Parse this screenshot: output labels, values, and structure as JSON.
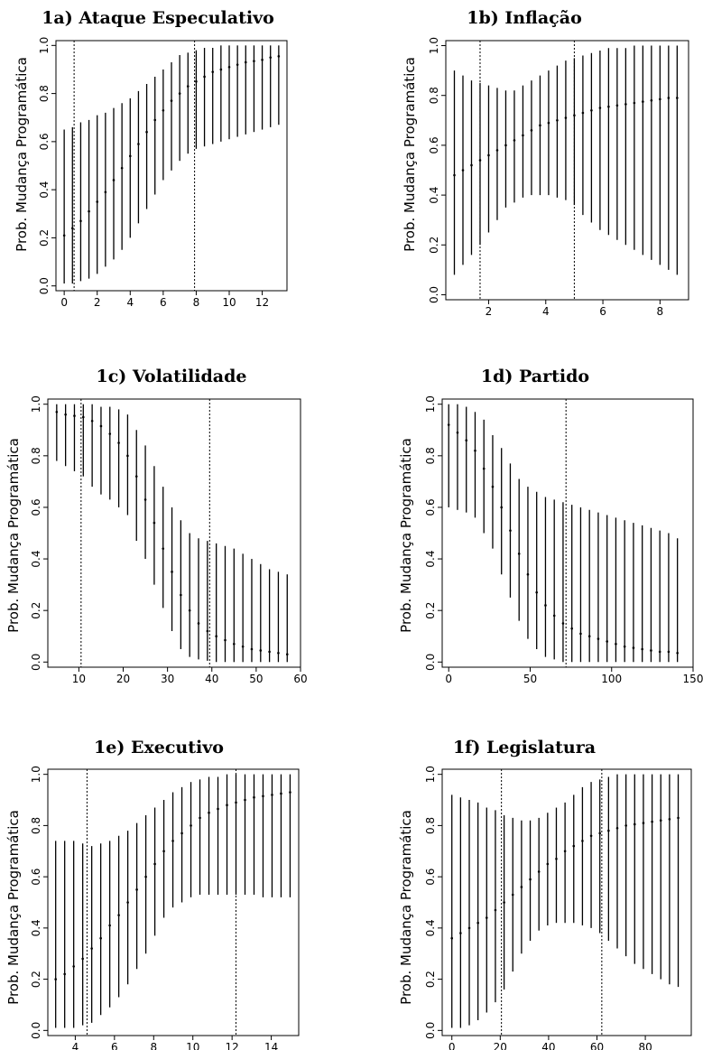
{
  "chart_data": [
    {
      "id": "1a",
      "type": "errorbar",
      "title": "1a) Ataque Especulativo",
      "ylabel": "Prob. Mudança Programática",
      "xlim": [
        -0.5,
        13.5
      ],
      "ylim": [
        -0.02,
        1.02
      ],
      "xticks": [
        0,
        2,
        4,
        6,
        8,
        10,
        12
      ],
      "yticks": [
        0.0,
        0.2,
        0.4,
        0.6,
        0.8,
        1.0
      ],
      "vlines": [
        0.6,
        7.9
      ],
      "x": [
        0,
        0.5,
        1,
        1.5,
        2,
        2.5,
        3,
        3.5,
        4,
        4.5,
        5,
        5.5,
        6,
        6.5,
        7,
        7.5,
        8,
        8.5,
        9,
        9.5,
        10,
        10.5,
        11,
        11.5,
        12,
        12.5,
        13
      ],
      "y": [
        0.21,
        0.24,
        0.27,
        0.31,
        0.35,
        0.39,
        0.44,
        0.49,
        0.54,
        0.59,
        0.64,
        0.69,
        0.73,
        0.77,
        0.8,
        0.83,
        0.85,
        0.87,
        0.89,
        0.9,
        0.91,
        0.92,
        0.93,
        0.935,
        0.94,
        0.95,
        0.955
      ],
      "lower": [
        0.01,
        0.01,
        0.02,
        0.03,
        0.05,
        0.08,
        0.11,
        0.15,
        0.2,
        0.26,
        0.32,
        0.38,
        0.44,
        0.48,
        0.52,
        0.55,
        0.57,
        0.58,
        0.59,
        0.6,
        0.61,
        0.62,
        0.63,
        0.64,
        0.65,
        0.66,
        0.67
      ],
      "upper": [
        0.65,
        0.66,
        0.68,
        0.69,
        0.71,
        0.72,
        0.74,
        0.76,
        0.78,
        0.81,
        0.84,
        0.87,
        0.9,
        0.93,
        0.96,
        0.97,
        0.98,
        0.99,
        0.99,
        1.0,
        1.0,
        1.0,
        1.0,
        1.0,
        1.0,
        1.0,
        1.0
      ]
    },
    {
      "id": "1b",
      "type": "errorbar",
      "title": "1b) Inflação",
      "ylabel": "Prob. Mudança Programática",
      "xlim": [
        0.5,
        9.0
      ],
      "ylim": [
        -0.02,
        1.02
      ],
      "xticks": [
        2,
        4,
        6,
        8
      ],
      "yticks": [
        0.0,
        0.2,
        0.4,
        0.6,
        0.8,
        1.0
      ],
      "vlines": [
        1.7,
        5.0
      ],
      "x": [
        0.8,
        1.1,
        1.4,
        1.7,
        2.0,
        2.3,
        2.6,
        2.9,
        3.2,
        3.5,
        3.8,
        4.1,
        4.4,
        4.7,
        5.0,
        5.3,
        5.6,
        5.9,
        6.2,
        6.5,
        6.8,
        7.1,
        7.4,
        7.7,
        8.0,
        8.3,
        8.6
      ],
      "y": [
        0.48,
        0.5,
        0.52,
        0.54,
        0.56,
        0.58,
        0.6,
        0.62,
        0.64,
        0.66,
        0.68,
        0.69,
        0.7,
        0.71,
        0.72,
        0.73,
        0.74,
        0.75,
        0.755,
        0.76,
        0.765,
        0.77,
        0.775,
        0.78,
        0.785,
        0.79,
        0.79
      ],
      "lower": [
        0.08,
        0.12,
        0.16,
        0.2,
        0.25,
        0.3,
        0.35,
        0.37,
        0.39,
        0.4,
        0.4,
        0.4,
        0.39,
        0.38,
        0.36,
        0.32,
        0.29,
        0.26,
        0.24,
        0.22,
        0.2,
        0.18,
        0.16,
        0.14,
        0.12,
        0.1,
        0.08
      ],
      "upper": [
        0.9,
        0.88,
        0.86,
        0.85,
        0.84,
        0.83,
        0.82,
        0.82,
        0.84,
        0.86,
        0.88,
        0.9,
        0.92,
        0.94,
        0.95,
        0.96,
        0.97,
        0.98,
        0.99,
        0.99,
        0.99,
        1.0,
        1.0,
        1.0,
        1.0,
        1.0,
        1.0
      ]
    },
    {
      "id": "1c",
      "type": "errorbar",
      "title": "1c) Volatilidade",
      "ylabel": "Prob. Mudança Programática",
      "xlim": [
        3,
        60
      ],
      "ylim": [
        -0.02,
        1.02
      ],
      "xticks": [
        10,
        20,
        30,
        40,
        50,
        60
      ],
      "yticks": [
        0.0,
        0.2,
        0.4,
        0.6,
        0.8,
        1.0
      ],
      "vlines": [
        10.5,
        39.5
      ],
      "x": [
        5,
        7,
        9,
        11,
        13,
        15,
        17,
        19,
        21,
        23,
        25,
        27,
        29,
        31,
        33,
        35,
        37,
        39,
        41,
        43,
        45,
        47,
        49,
        51,
        53,
        55,
        57
      ],
      "y": [
        0.97,
        0.96,
        0.955,
        0.95,
        0.935,
        0.915,
        0.885,
        0.85,
        0.8,
        0.72,
        0.63,
        0.54,
        0.44,
        0.35,
        0.26,
        0.2,
        0.15,
        0.12,
        0.1,
        0.085,
        0.07,
        0.06,
        0.05,
        0.045,
        0.04,
        0.035,
        0.03
      ],
      "lower": [
        0.78,
        0.76,
        0.74,
        0.72,
        0.68,
        0.65,
        0.63,
        0.6,
        0.57,
        0.47,
        0.4,
        0.3,
        0.21,
        0.12,
        0.05,
        0.02,
        0.01,
        0.005,
        0.0,
        0.0,
        0.0,
        0.0,
        0.0,
        0.0,
        0.0,
        0.0,
        0.0
      ],
      "upper": [
        1.0,
        1.0,
        1.0,
        1.0,
        1.0,
        0.99,
        0.99,
        0.98,
        0.96,
        0.9,
        0.84,
        0.76,
        0.68,
        0.6,
        0.55,
        0.5,
        0.48,
        0.47,
        0.46,
        0.45,
        0.44,
        0.42,
        0.4,
        0.38,
        0.36,
        0.35,
        0.34
      ]
    },
    {
      "id": "1d",
      "type": "errorbar",
      "title": "1d) Partido",
      "ylabel": "Prob. Mudança Programática",
      "xlim": [
        -4,
        150
      ],
      "ylim": [
        -0.02,
        1.02
      ],
      "xticks": [
        0,
        50,
        100,
        150
      ],
      "yticks": [
        0.0,
        0.2,
        0.4,
        0.6,
        0.8,
        1.0
      ],
      "vlines": [
        72
      ],
      "x": [
        0,
        5.4,
        10.8,
        16.2,
        21.6,
        27,
        32.4,
        37.8,
        43.2,
        48.6,
        54,
        59.4,
        64.8,
        70.2,
        75.6,
        81,
        86.4,
        91.8,
        97.2,
        102.6,
        108,
        113.4,
        118.8,
        124.2,
        129.6,
        135,
        140.4
      ],
      "y": [
        0.92,
        0.89,
        0.86,
        0.82,
        0.75,
        0.68,
        0.6,
        0.51,
        0.42,
        0.34,
        0.27,
        0.22,
        0.18,
        0.15,
        0.13,
        0.11,
        0.1,
        0.09,
        0.08,
        0.07,
        0.06,
        0.055,
        0.05,
        0.045,
        0.04,
        0.04,
        0.035
      ],
      "lower": [
        0.6,
        0.59,
        0.58,
        0.56,
        0.5,
        0.44,
        0.34,
        0.25,
        0.16,
        0.09,
        0.05,
        0.02,
        0.01,
        0.0,
        0.0,
        0.0,
        0.0,
        0.0,
        0.0,
        0.0,
        0.0,
        0.0,
        0.0,
        0.0,
        0.0,
        0.0,
        0.0
      ],
      "upper": [
        1.0,
        1.0,
        0.99,
        0.97,
        0.94,
        0.88,
        0.83,
        0.77,
        0.71,
        0.68,
        0.66,
        0.64,
        0.63,
        0.62,
        0.61,
        0.6,
        0.59,
        0.58,
        0.57,
        0.56,
        0.55,
        0.54,
        0.53,
        0.52,
        0.51,
        0.5,
        0.48
      ]
    },
    {
      "id": "1e",
      "type": "errorbar",
      "title": "1e) Executivo",
      "ylabel": "Prob. Mudança Programática",
      "xlim": [
        2.6,
        15.4
      ],
      "ylim": [
        -0.02,
        1.02
      ],
      "xticks": [
        4,
        6,
        8,
        10,
        12,
        14
      ],
      "yticks": [
        0.0,
        0.2,
        0.4,
        0.6,
        0.8,
        1.0
      ],
      "vlines": [
        4.6,
        12.2
      ],
      "x": [
        3,
        3.46,
        3.92,
        4.38,
        4.84,
        5.3,
        5.76,
        6.22,
        6.68,
        7.14,
        7.6,
        8.06,
        8.52,
        8.98,
        9.44,
        9.9,
        10.36,
        10.82,
        11.28,
        11.74,
        12.2,
        12.66,
        13.12,
        13.58,
        14.04,
        14.5,
        14.96
      ],
      "y": [
        0.2,
        0.22,
        0.25,
        0.28,
        0.32,
        0.36,
        0.41,
        0.45,
        0.5,
        0.55,
        0.6,
        0.65,
        0.7,
        0.74,
        0.77,
        0.8,
        0.83,
        0.85,
        0.865,
        0.88,
        0.89,
        0.9,
        0.91,
        0.915,
        0.92,
        0.925,
        0.93
      ],
      "lower": [
        0.01,
        0.01,
        0.01,
        0.02,
        0.03,
        0.06,
        0.09,
        0.13,
        0.18,
        0.24,
        0.3,
        0.37,
        0.44,
        0.48,
        0.5,
        0.52,
        0.53,
        0.53,
        0.53,
        0.53,
        0.53,
        0.53,
        0.53,
        0.52,
        0.52,
        0.52,
        0.52
      ],
      "upper": [
        0.74,
        0.74,
        0.74,
        0.73,
        0.72,
        0.73,
        0.74,
        0.76,
        0.78,
        0.81,
        0.84,
        0.87,
        0.9,
        0.93,
        0.95,
        0.97,
        0.98,
        0.99,
        0.99,
        1.0,
        1.0,
        1.0,
        1.0,
        1.0,
        1.0,
        1.0,
        1.0
      ]
    },
    {
      "id": "1f",
      "type": "errorbar",
      "title": "1f) Legislatura",
      "ylabel": "Prob. Mudança Programática",
      "xlim": [
        -4,
        99
      ],
      "ylim": [
        -0.02,
        1.02
      ],
      "xticks": [
        0,
        20,
        40,
        60,
        80
      ],
      "yticks": [
        0.0,
        0.2,
        0.4,
        0.6,
        0.8,
        1.0
      ],
      "vlines": [
        20.5,
        62
      ],
      "x": [
        0,
        3.6,
        7.2,
        10.8,
        14.4,
        18,
        21.6,
        25.2,
        28.8,
        32.4,
        36,
        39.6,
        43.2,
        46.8,
        50.4,
        54,
        57.6,
        61.2,
        64.8,
        68.4,
        72,
        75.6,
        79.2,
        82.8,
        86.4,
        90,
        93.6
      ],
      "y": [
        0.36,
        0.38,
        0.4,
        0.42,
        0.44,
        0.47,
        0.5,
        0.53,
        0.56,
        0.59,
        0.62,
        0.65,
        0.67,
        0.7,
        0.72,
        0.74,
        0.76,
        0.77,
        0.78,
        0.79,
        0.8,
        0.805,
        0.81,
        0.815,
        0.82,
        0.825,
        0.83
      ],
      "lower": [
        0.01,
        0.01,
        0.02,
        0.04,
        0.07,
        0.11,
        0.16,
        0.23,
        0.3,
        0.35,
        0.39,
        0.41,
        0.42,
        0.42,
        0.42,
        0.41,
        0.4,
        0.38,
        0.35,
        0.32,
        0.29,
        0.26,
        0.24,
        0.22,
        0.2,
        0.18,
        0.17
      ],
      "upper": [
        0.92,
        0.91,
        0.9,
        0.89,
        0.87,
        0.86,
        0.84,
        0.83,
        0.82,
        0.82,
        0.83,
        0.85,
        0.87,
        0.89,
        0.92,
        0.95,
        0.97,
        0.98,
        0.99,
        1.0,
        1.0,
        1.0,
        1.0,
        1.0,
        1.0,
        1.0,
        1.0
      ]
    }
  ]
}
